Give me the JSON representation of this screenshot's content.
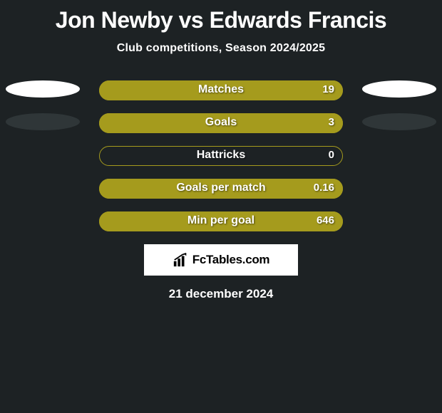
{
  "title": "Jon Newby vs Edwards Francis",
  "title_color": "#ffffff",
  "title_fontsize": 32,
  "subtitle": "Club competitions, Season 2024/2025",
  "bar_style": {
    "track_border_color": "#a59b1d",
    "track_fill_color": "#1d2224",
    "fill_color": "#a59b1d",
    "height": 28,
    "radius": 14
  },
  "stats": [
    {
      "label": "Matches",
      "value": "19",
      "fill_pct": 100
    },
    {
      "label": "Goals",
      "value": "3",
      "fill_pct": 100
    },
    {
      "label": "Hattricks",
      "value": "0",
      "fill_pct": 0
    },
    {
      "label": "Goals per match",
      "value": "0.16",
      "fill_pct": 100
    },
    {
      "label": "Min per goal",
      "value": "646",
      "fill_pct": 100
    }
  ],
  "avatars": {
    "left": [
      "white",
      "dark"
    ],
    "right": [
      "white",
      "dark"
    ]
  },
  "brand": "FcTables.com",
  "date": "21 december 2024",
  "background_color": "#1d2224"
}
